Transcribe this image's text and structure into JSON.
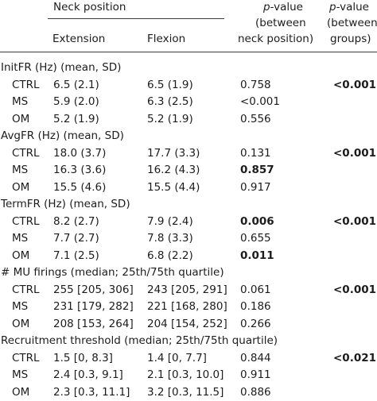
{
  "header": {
    "neck_position": "Neck position",
    "col_ext": "Extension",
    "col_flex": "Flexion",
    "p1_italic": "p",
    "p1_rest": "-value",
    "p1_line2": "(between",
    "p1_line3": "neck position)",
    "p2_italic": "p",
    "p2_rest": "-value",
    "p2_line2": "(between",
    "p2_line3": "groups)"
  },
  "sections": [
    {
      "title": "InitFR (Hz) (mean, SD)",
      "p_groups": "<0.001",
      "rows": [
        {
          "group": "CTRL",
          "ext": "6.5 (2.1)",
          "flex": "6.5 (1.9)",
          "p_neck": "0.758"
        },
        {
          "group": "MS",
          "ext": "5.9 (2.0)",
          "flex": "6.3 (2.5)",
          "p_neck": "<0.001"
        },
        {
          "group": "OM",
          "ext": "5.2 (1.9)",
          "flex": "5.2 (1.9)",
          "p_neck": "0.556"
        }
      ]
    },
    {
      "title": "AvgFR (Hz) (mean, SD)",
      "p_groups": "<0.001",
      "rows": [
        {
          "group": "CTRL",
          "ext": "18.0 (3.7)",
          "flex": "17.7 (3.3)",
          "p_neck": "0.131"
        },
        {
          "group": "MS",
          "ext": "16.3 (3.6)",
          "flex": "16.2 (4.3)",
          "p_neck": "0.857"
        },
        {
          "group": "OM",
          "ext": "15.5 (4.6)",
          "flex": "15.5 (4.4)",
          "p_neck": "0.917"
        }
      ]
    },
    {
      "title": "TermFR (Hz) (mean, SD)",
      "p_groups": "<0.001",
      "rows": [
        {
          "group": "CTRL",
          "ext": "8.2 (2.7)",
          "flex": "7.9 (2.4)",
          "p_neck": "0.006"
        },
        {
          "group": "MS",
          "ext": "7.7 (2.7)",
          "flex": "7.8 (3.3)",
          "p_neck": "0.655"
        },
        {
          "group": "OM",
          "ext": "7.1 (2.5)",
          "flex": "6.8 (2.2)",
          "p_neck": "0.011"
        }
      ]
    },
    {
      "title": "# MU firings (median; 25th/75th quartile)",
      "p_groups": "<0.001",
      "rows": [
        {
          "group": "CTRL",
          "ext": "255 [205, 306]",
          "flex": "243 [205, 291]",
          "p_neck": "0.061"
        },
        {
          "group": "MS",
          "ext": "231 [179, 282]",
          "flex": "221 [168, 280]",
          "p_neck": "0.186"
        },
        {
          "group": "OM",
          "ext": "208 [153, 264]",
          "flex": "204 [154, 252]",
          "p_neck": "0.266"
        }
      ]
    },
    {
      "title": "Recruitment threshold (median; 25th/75th quartile)",
      "p_groups": "<0.021",
      "rows": [
        {
          "group": "CTRL",
          "ext": "1.5 [0, 8.3]",
          "flex": "1.4 [0, 7.7]",
          "p_neck": "0.844"
        },
        {
          "group": "MS",
          "ext": "2.4 [0.3, 9.1]",
          "flex": "2.1 [0.3, 10.0]",
          "p_neck": "0.911"
        },
        {
          "group": "OM",
          "ext": "2.3 [0.3, 11.1]",
          "flex": "3.2 [0.3, 11.5]",
          "p_neck": "0.886"
        }
      ]
    }
  ]
}
